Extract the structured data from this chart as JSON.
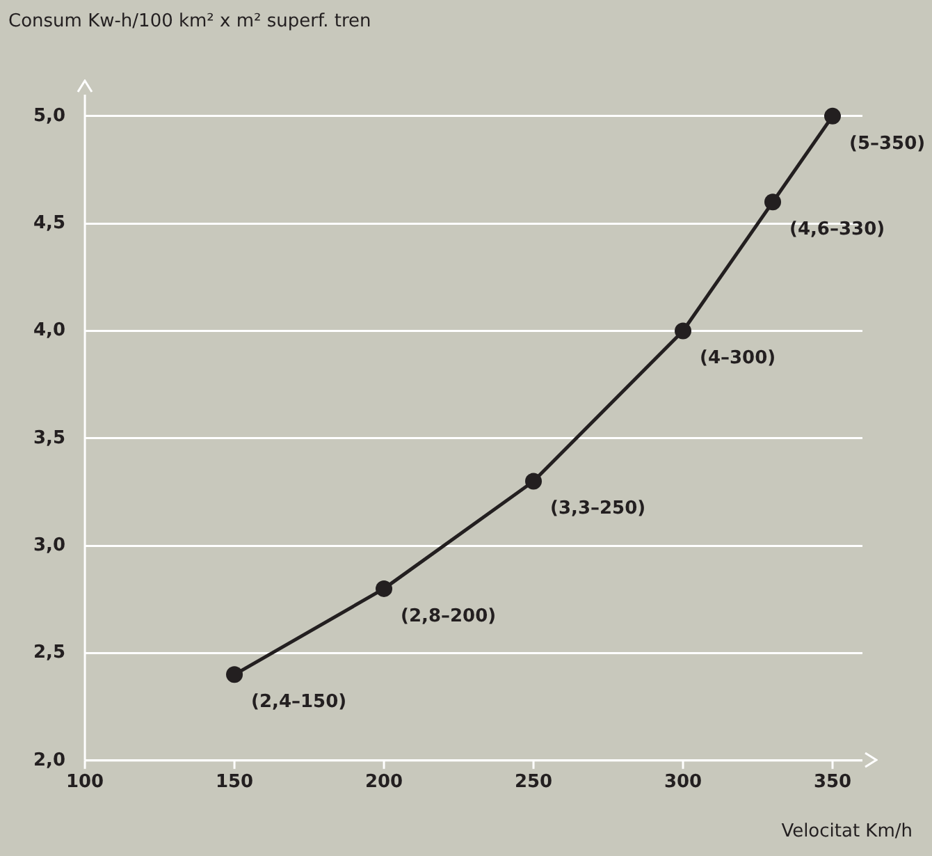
{
  "chart_data": {
    "type": "line",
    "ylabel": "Consum Kw-h/100 km² x m² superf. tren",
    "xlabel": "Velocitat Km/h",
    "x": [
      150,
      200,
      250,
      300,
      330,
      350
    ],
    "series": [
      {
        "color": "#231f20",
        "values": [
          2.4,
          2.8,
          3.3,
          4.0,
          4.6,
          5.0
        ]
      }
    ],
    "xlim": [
      100,
      360
    ],
    "ylim": [
      2,
      5.1
    ],
    "xticks": [
      {
        "value": 100,
        "label": "100"
      },
      {
        "value": 150,
        "label": "150"
      },
      {
        "value": 200,
        "label": "200"
      },
      {
        "value": 250,
        "label": "250"
      },
      {
        "value": 300,
        "label": "300"
      },
      {
        "value": 350,
        "label": "350"
      }
    ],
    "yticks": [
      {
        "value": 2,
        "label": "2,0"
      },
      {
        "value": 2.5,
        "label": "2,5"
      },
      {
        "value": 3,
        "label": "3,0"
      },
      {
        "value": 3.5,
        "label": "3,5"
      },
      {
        "value": 4,
        "label": "4,0"
      },
      {
        "value": 4.5,
        "label": "4,5"
      },
      {
        "value": 5,
        "label": "5,0"
      }
    ],
    "grid": "y",
    "legend": false,
    "marker": "circle",
    "line_style": "solid",
    "annotations": [
      {
        "text": "(2,4–150)",
        "x": 150,
        "y": 2.4
      },
      {
        "text": "(2,8–200)",
        "x": 200,
        "y": 2.8
      },
      {
        "text": "(3,3–250)",
        "x": 250,
        "y": 3.3
      },
      {
        "text": "(4–300)",
        "x": 300,
        "y": 4.0
      },
      {
        "text": "(4,6–330)",
        "x": 330,
        "y": 4.6
      },
      {
        "text": "(5–350)",
        "x": 350,
        "y": 5.0
      }
    ]
  }
}
